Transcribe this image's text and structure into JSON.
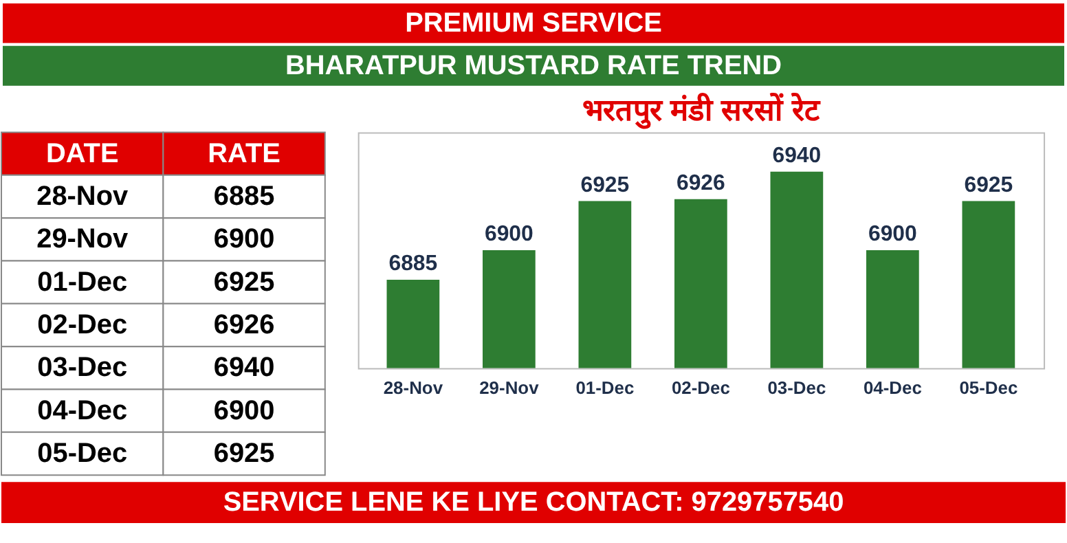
{
  "chart_data": [
    {
      "type": "other",
      "annotations": [
        "DATE",
        "RATE"
      ],
      "categories": [
        "28-Nov",
        "29-Nov",
        "01-Dec",
        "02-Dec",
        "03-Dec",
        "04-Dec",
        "05-Dec"
      ],
      "values": [
        6885,
        6900,
        6925,
        6926,
        6940,
        6900,
        6925
      ],
      "data_labels": true
    },
    {
      "type": "bar",
      "title": "PREMIUM SERVICE",
      "subtitle": "BHARATPUR MUSTARD RATE TREND",
      "categories": [
        "28-Nov",
        "29-Nov",
        "01-Dec",
        "02-Dec",
        "03-Dec",
        "04-Dec",
        "05-Dec"
      ],
      "series": [
        {
          "name": "भरतपुर मंडी सरसों रेट",
          "color": "#2e7d32",
          "values": [
            6885,
            6900,
            6925,
            6926,
            6940,
            6900,
            6925
          ]
        }
      ],
      "ylim": [
        6840,
        6960
      ],
      "data_labels": true,
      "grid": false,
      "legend": false,
      "annotations": [
        "SERVICE LENE KE LIYE CONTACT: 9729757540"
      ]
    }
  ]
}
